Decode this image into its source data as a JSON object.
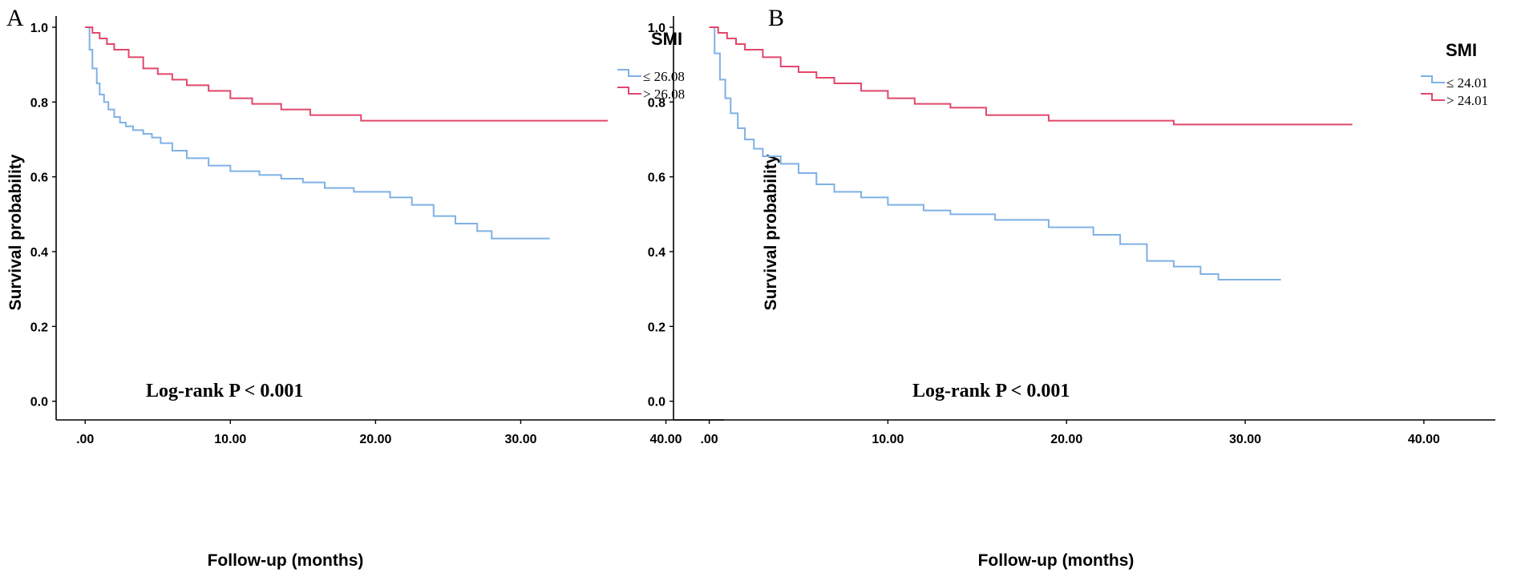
{
  "chart_data": [
    {
      "panel": "A",
      "type": "line",
      "subtype": "kaplan-meier",
      "title": "",
      "xlabel": "Follow-up (months)",
      "ylabel": "Survival probability",
      "xlim": [
        -2,
        44
      ],
      "ylim": [
        -0.05,
        1.03
      ],
      "xticks": [
        0,
        10,
        20,
        30,
        40
      ],
      "xtick_labels": [
        ".00",
        "10.00",
        "20.00",
        "30.00",
        "40.00"
      ],
      "yticks": [
        0.0,
        0.2,
        0.4,
        0.6,
        0.8,
        1.0
      ],
      "ytick_labels": [
        "0.0",
        "0.2",
        "0.4",
        "0.6",
        "0.8",
        "1.0"
      ],
      "legend": {
        "title": "SMI",
        "position": "top-right"
      },
      "annotation": "Log-rank P < 0.001",
      "series": [
        {
          "name": "≤ 26.08",
          "color": "#7fb1e5",
          "x": [
            0,
            0.3,
            0.5,
            0.8,
            1.0,
            1.3,
            1.6,
            2.0,
            2.4,
            2.8,
            3.3,
            4.0,
            4.6,
            5.2,
            6.0,
            7.0,
            8.5,
            10.0,
            12.0,
            13.5,
            15.0,
            16.5,
            18.5,
            21.0,
            22.5,
            24.0,
            25.5,
            27.0,
            28.0,
            32.0
          ],
          "y": [
            1.0,
            0.94,
            0.89,
            0.85,
            0.82,
            0.8,
            0.78,
            0.76,
            0.745,
            0.735,
            0.725,
            0.715,
            0.705,
            0.69,
            0.67,
            0.65,
            0.63,
            0.615,
            0.605,
            0.595,
            0.585,
            0.57,
            0.56,
            0.545,
            0.525,
            0.495,
            0.475,
            0.455,
            0.435,
            0.435
          ]
        },
        {
          "name": "> 26.08",
          "color": "#e0486a",
          "x": [
            0,
            0.5,
            1.0,
            1.5,
            2.0,
            3.0,
            4.0,
            5.0,
            6.0,
            7.0,
            8.5,
            10.0,
            11.5,
            13.5,
            15.5,
            19.0,
            36.0
          ],
          "y": [
            1.0,
            0.985,
            0.97,
            0.955,
            0.94,
            0.92,
            0.89,
            0.875,
            0.86,
            0.845,
            0.83,
            0.81,
            0.795,
            0.78,
            0.765,
            0.75,
            0.75
          ]
        }
      ]
    },
    {
      "panel": "B",
      "type": "line",
      "subtype": "kaplan-meier",
      "title": "",
      "xlabel": "Follow-up (months)",
      "ylabel": "Survival probability",
      "xlim": [
        -2,
        44
      ],
      "ylim": [
        -0.05,
        1.03
      ],
      "xticks": [
        0,
        10,
        20,
        30,
        40
      ],
      "xtick_labels": [
        ".00",
        "10.00",
        "20.00",
        "30.00",
        "40.00"
      ],
      "yticks": [
        0.0,
        0.2,
        0.4,
        0.6,
        0.8,
        1.0
      ],
      "ytick_labels": [
        "0.0",
        "0.2",
        "0.4",
        "0.6",
        "0.8",
        "1.0"
      ],
      "legend": {
        "title": "SMI",
        "position": "top-right"
      },
      "annotation": "Log-rank P < 0.001",
      "series": [
        {
          "name": "≤ 24.01",
          "color": "#7fb1e5",
          "x": [
            0,
            0.3,
            0.6,
            0.9,
            1.2,
            1.6,
            2.0,
            2.5,
            3.0,
            4.0,
            5.0,
            6.0,
            7.0,
            8.5,
            10.0,
            12.0,
            13.5,
            16.0,
            19.0,
            21.5,
            23.0,
            24.5,
            26.0,
            27.5,
            28.5,
            32.0
          ],
          "y": [
            1.0,
            0.93,
            0.86,
            0.81,
            0.77,
            0.73,
            0.7,
            0.675,
            0.655,
            0.635,
            0.61,
            0.58,
            0.56,
            0.545,
            0.525,
            0.51,
            0.5,
            0.485,
            0.465,
            0.445,
            0.42,
            0.375,
            0.36,
            0.34,
            0.325,
            0.325
          ]
        },
        {
          "name": "> 24.01",
          "color": "#e0486a",
          "x": [
            0,
            0.5,
            1.0,
            1.5,
            2.0,
            3.0,
            4.0,
            5.0,
            6.0,
            7.0,
            8.5,
            10.0,
            11.5,
            13.5,
            15.5,
            19.0,
            26.0,
            36.0
          ],
          "y": [
            1.0,
            0.985,
            0.97,
            0.955,
            0.94,
            0.92,
            0.895,
            0.88,
            0.865,
            0.85,
            0.83,
            0.81,
            0.795,
            0.785,
            0.765,
            0.75,
            0.74,
            0.74
          ]
        }
      ]
    }
  ]
}
